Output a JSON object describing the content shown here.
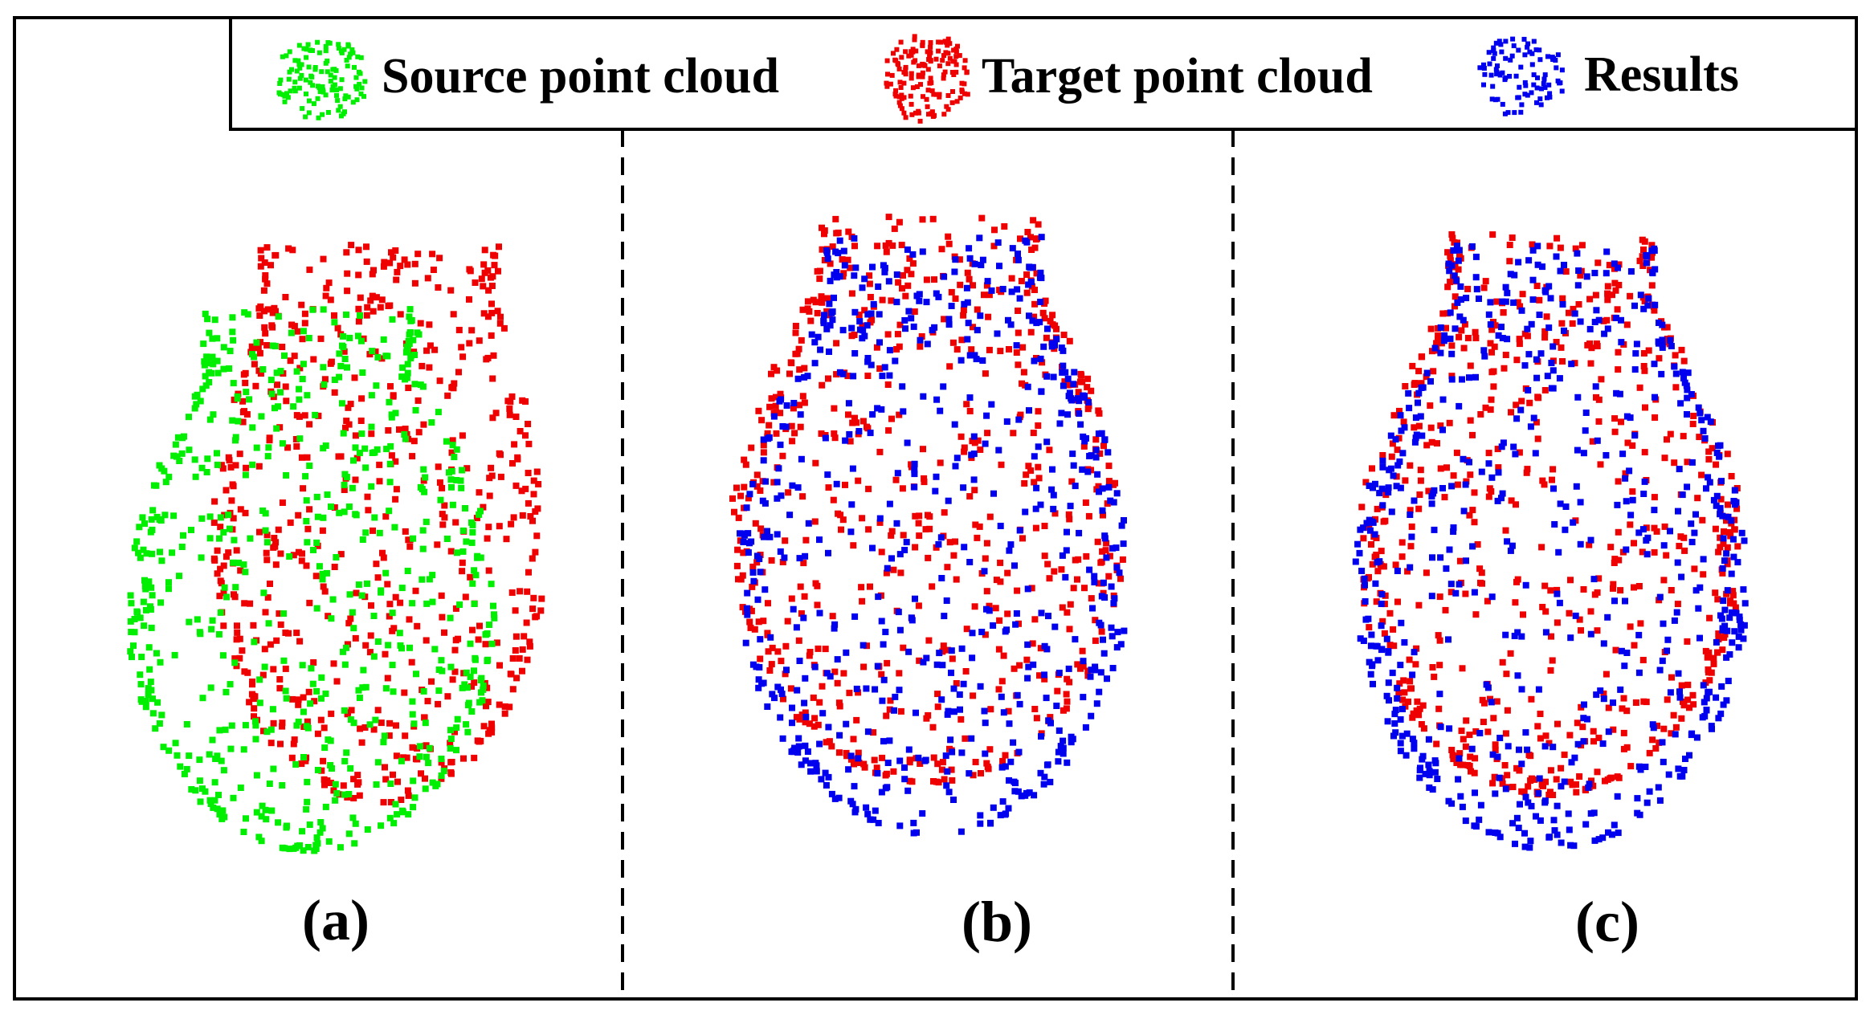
{
  "legend": {
    "items": [
      {
        "label": "Source point cloud",
        "color": "#00ee00"
      },
      {
        "label": "Target point cloud",
        "color": "#ee0000"
      },
      {
        "label": "Results",
        "color": "#0000ee"
      }
    ]
  },
  "panels": [
    {
      "label": "(a)",
      "clouds": [
        "source",
        "target"
      ]
    },
    {
      "label": "(b)",
      "clouds": [
        "target",
        "results"
      ]
    },
    {
      "label": "(c)",
      "clouds": [
        "target",
        "results"
      ]
    }
  ]
}
